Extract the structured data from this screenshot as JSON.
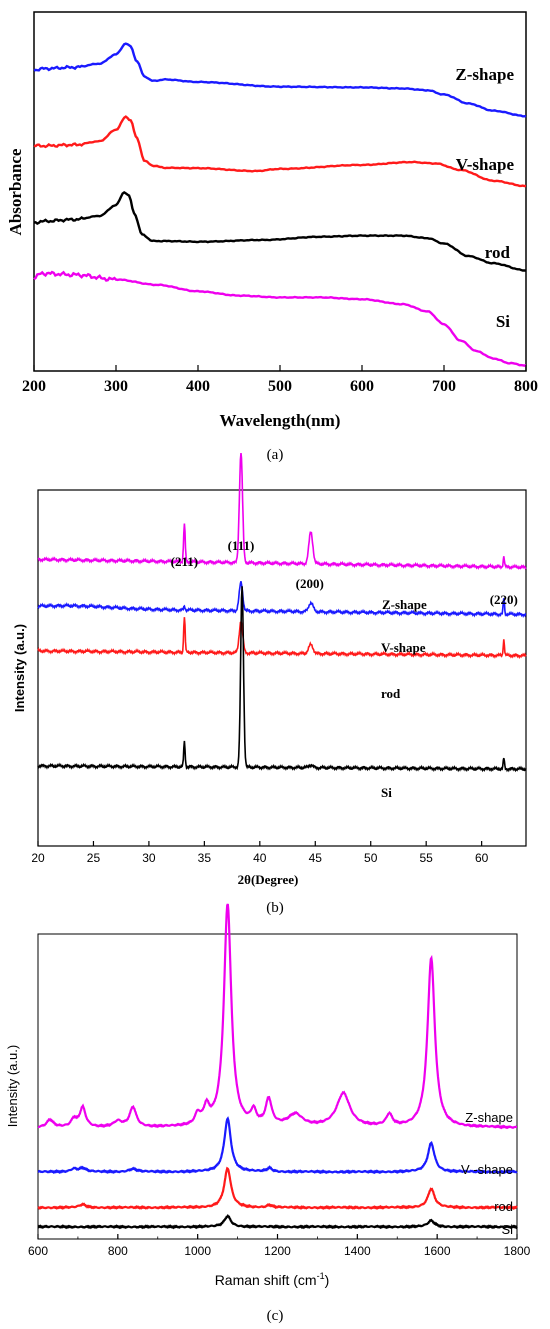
{
  "chart_data": [
    {
      "type": "line",
      "caption": "(a)",
      "xlabel": "Wavelength(nm)",
      "ylabel": "Absorbance",
      "xlim": [
        200,
        800
      ],
      "xticks": [
        200,
        300,
        400,
        500,
        600,
        700,
        800
      ],
      "y_tick_labels": false,
      "legend": "inline labels at right end of each curve",
      "series": [
        {
          "name": "Z-shape",
          "color": "#1a1aff",
          "x": [
            200,
            210,
            250,
            280,
            300,
            312,
            318,
            325,
            335,
            345,
            360,
            400,
            500,
            600,
            650,
            680,
            700,
            730,
            760,
            800
          ],
          "y": [
            0.838,
            0.842,
            0.846,
            0.856,
            0.882,
            0.912,
            0.904,
            0.864,
            0.82,
            0.808,
            0.812,
            0.805,
            0.792,
            0.79,
            0.787,
            0.782,
            0.77,
            0.745,
            0.725,
            0.71
          ]
        },
        {
          "name": "V-shape",
          "color": "#ff1a1a",
          "x": [
            200,
            210,
            250,
            280,
            300,
            312,
            318,
            325,
            335,
            345,
            360,
            400,
            470,
            500,
            600,
            660,
            690,
            720,
            760,
            800
          ],
          "y": [
            0.628,
            0.627,
            0.63,
            0.64,
            0.672,
            0.708,
            0.698,
            0.65,
            0.585,
            0.572,
            0.566,
            0.565,
            0.557,
            0.563,
            0.574,
            0.582,
            0.578,
            0.56,
            0.53,
            0.515
          ]
        },
        {
          "name": "rod",
          "color": "#000000",
          "x": [
            200,
            210,
            250,
            280,
            300,
            310,
            316,
            322,
            332,
            345,
            360,
            400,
            480,
            550,
            600,
            650,
            680,
            700,
            730,
            760,
            800
          ],
          "y": [
            0.412,
            0.417,
            0.422,
            0.432,
            0.462,
            0.498,
            0.488,
            0.44,
            0.38,
            0.362,
            0.362,
            0.36,
            0.365,
            0.374,
            0.377,
            0.377,
            0.37,
            0.355,
            0.32,
            0.3,
            0.28
          ]
        },
        {
          "name": "Si",
          "color": "#ee00ee",
          "x": [
            200,
            210,
            250,
            300,
            350,
            400,
            450,
            500,
            550,
            600,
            650,
            680,
            700,
            720,
            740,
            760,
            780,
            800
          ],
          "y": [
            0.26,
            0.272,
            0.268,
            0.255,
            0.24,
            0.222,
            0.21,
            0.205,
            0.205,
            0.2,
            0.186,
            0.166,
            0.13,
            0.085,
            0.055,
            0.035,
            0.022,
            0.015
          ]
        }
      ]
    },
    {
      "type": "line",
      "caption": "(b)",
      "xlabel": "2θ(Degree)",
      "ylabel": "Intensity (a.u.)",
      "xlim": [
        20,
        64
      ],
      "xticks": [
        20,
        25,
        30,
        35,
        40,
        45,
        50,
        55,
        60
      ],
      "y_tick_labels": false,
      "legend": "inline labels above each curve",
      "peak_labels": [
        {
          "text": "(211)",
          "x": 33.2
        },
        {
          "text": "(111)",
          "x": 38.3
        },
        {
          "text": "(200)",
          "x": 44.5
        },
        {
          "text": "(220)",
          "x": 62.0
        }
      ],
      "series": [
        {
          "name": "Z-shape",
          "color": "#ee00ee",
          "baseline": 0.805,
          "slope": -0.0005,
          "peaks": [
            {
              "x": 33.2,
              "h": 0.105,
              "w": 0.1
            },
            {
              "x": 38.3,
              "h": 0.31,
              "w": 0.2
            },
            {
              "x": 44.6,
              "h": 0.09,
              "w": 0.25
            },
            {
              "x": 62.0,
              "h": 0.03,
              "w": 0.08
            }
          ]
        },
        {
          "name": "V-shape",
          "color": "#1a1aff",
          "baseline": 0.668,
          "slope": -0.0004,
          "peaks": [
            {
              "x": 33.2,
              "h": 0.012,
              "w": 0.08
            },
            {
              "x": 38.3,
              "h": 0.08,
              "w": 0.22
            },
            {
              "x": 44.6,
              "h": 0.025,
              "w": 0.28
            },
            {
              "x": 62.0,
              "h": 0.045,
              "w": 0.08
            }
          ]
        },
        {
          "name": "rod",
          "color": "#ff1a1a",
          "baseline": 0.548,
          "slope": -0.0003,
          "peaks": [
            {
              "x": 33.2,
              "h": 0.1,
              "w": 0.09
            },
            {
              "x": 38.3,
              "h": 0.09,
              "w": 0.22
            },
            {
              "x": 44.6,
              "h": 0.025,
              "w": 0.28
            },
            {
              "x": 62.0,
              "h": 0.045,
              "w": 0.08
            }
          ]
        },
        {
          "name": "Si",
          "color": "#000000",
          "baseline": 0.225,
          "slope": -0.0002,
          "peaks": [
            {
              "x": 33.2,
              "h": 0.07,
              "w": 0.09
            },
            {
              "x": 38.4,
              "h": 0.51,
              "w": 0.18
            },
            {
              "x": 44.6,
              "h": 0.008,
              "w": 0.25
            },
            {
              "x": 62.0,
              "h": 0.03,
              "w": 0.08
            }
          ]
        }
      ]
    },
    {
      "type": "line",
      "caption": "(c)",
      "xlabel": "Raman shift  (cm",
      "xlabel_sup": "-1",
      "xlabel_end": ")",
      "ylabel": "Intensity (a.u.)",
      "xlim": [
        600,
        1800
      ],
      "xticks": [
        600,
        800,
        1000,
        1200,
        1400,
        1600,
        1800
      ],
      "y_tick_labels": false,
      "legend": "inline labels at right end of each curve",
      "series": [
        {
          "name": "Z-shape",
          "color": "#ee00ee",
          "baseline": 0.365,
          "peaks": [
            {
              "x": 630,
              "h": 0.025,
              "w": 10
            },
            {
              "x": 690,
              "h": 0.025,
              "w": 8
            },
            {
              "x": 712,
              "h": 0.065,
              "w": 9
            },
            {
              "x": 800,
              "h": 0.018,
              "w": 12
            },
            {
              "x": 838,
              "h": 0.065,
              "w": 10
            },
            {
              "x": 1000,
              "h": 0.035,
              "w": 8
            },
            {
              "x": 1022,
              "h": 0.055,
              "w": 9
            },
            {
              "x": 1075,
              "h": 0.73,
              "w": 11
            },
            {
              "x": 1140,
              "h": 0.045,
              "w": 8
            },
            {
              "x": 1178,
              "h": 0.085,
              "w": 9
            },
            {
              "x": 1245,
              "h": 0.04,
              "w": 22
            },
            {
              "x": 1365,
              "h": 0.11,
              "w": 20
            },
            {
              "x": 1480,
              "h": 0.038,
              "w": 9
            },
            {
              "x": 1585,
              "h": 0.555,
              "w": 11
            }
          ]
        },
        {
          "name": "V -shape",
          "color": "#1a1aff",
          "baseline": 0.22,
          "peaks": [
            {
              "x": 690,
              "h": 0.01,
              "w": 10
            },
            {
              "x": 712,
              "h": 0.012,
              "w": 10
            },
            {
              "x": 838,
              "h": 0.01,
              "w": 12
            },
            {
              "x": 1075,
              "h": 0.175,
              "w": 10
            },
            {
              "x": 1180,
              "h": 0.012,
              "w": 8
            },
            {
              "x": 1585,
              "h": 0.095,
              "w": 10
            }
          ]
        },
        {
          "name": "rod",
          "color": "#ff1a1a",
          "baseline": 0.103,
          "peaks": [
            {
              "x": 712,
              "h": 0.01,
              "w": 10
            },
            {
              "x": 1075,
              "h": 0.128,
              "w": 10
            },
            {
              "x": 1180,
              "h": 0.008,
              "w": 8
            },
            {
              "x": 1585,
              "h": 0.062,
              "w": 10
            }
          ]
        },
        {
          "name": "Si",
          "color": "#000000",
          "baseline": 0.04,
          "peaks": [
            {
              "x": 1075,
              "h": 0.035,
              "w": 10
            },
            {
              "x": 1585,
              "h": 0.02,
              "w": 10
            }
          ]
        }
      ]
    }
  ]
}
